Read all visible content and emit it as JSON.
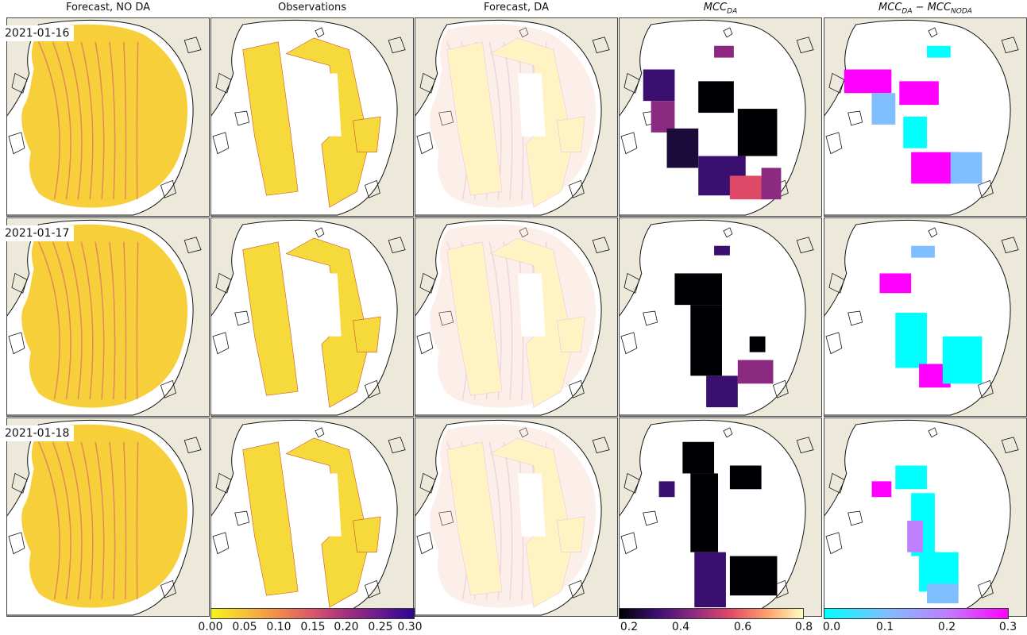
{
  "columns": [
    {
      "id": "nodaf",
      "title": "Forecast, NO DA"
    },
    {
      "id": "obs",
      "title": "Observations"
    },
    {
      "id": "daf",
      "title": "Forecast, DA"
    },
    {
      "id": "mcc",
      "title_main": "MCC",
      "title_sub": "DA"
    },
    {
      "id": "diff",
      "title_main1": "MCC",
      "title_sub1": "DA",
      "title_minus": " − ",
      "title_main2": "MCC",
      "title_sub2": "NODA"
    }
  ],
  "rows": [
    {
      "date": "2021-01-16"
    },
    {
      "date": "2021-01-17"
    },
    {
      "date": "2021-01-18"
    }
  ],
  "colorbars": [
    {
      "id": "deformation",
      "ticks": [
        "0.00",
        "0.05",
        "0.10",
        "0.15",
        "0.20",
        "0.25",
        "0.30"
      ],
      "colors": [
        "#f4f31c",
        "#f7c13a",
        "#f08a4e",
        "#d8576b",
        "#a2307e",
        "#6a1a8e",
        "#2c0593"
      ]
    },
    {
      "id": "mcc",
      "ticks": [
        "0.2",
        "0.4",
        "0.6",
        "0.8"
      ],
      "colors": [
        "#000004",
        "#3b0f70",
        "#8c2981",
        "#de4968",
        "#fe9f6d",
        "#fcfdbf"
      ]
    },
    {
      "id": "diff",
      "ticks": [
        "0.0",
        "0.1",
        "0.2",
        "0.3"
      ],
      "colors": [
        "#00ffff",
        "#7fbfff",
        "#bf7fff",
        "#ff00ff"
      ]
    }
  ],
  "colors": {
    "land": "#ece9da",
    "ocean": "#ffffff",
    "coast": "#111111",
    "ice": "#f6d93a"
  }
}
